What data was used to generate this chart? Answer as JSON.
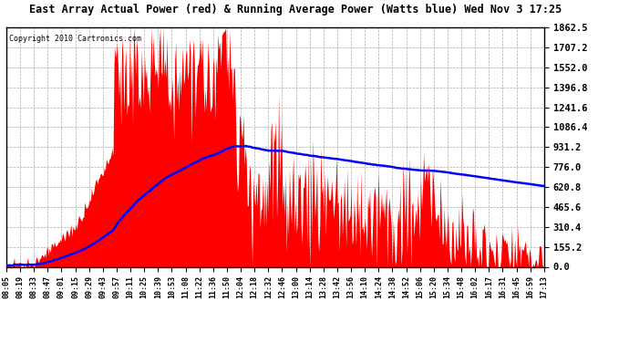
{
  "title": "East Array Actual Power (red) & Running Average Power (Watts blue) Wed Nov 3 17:25",
  "copyright": "Copyright 2010 Cartronics.com",
  "ylabel_right_ticks": [
    0.0,
    155.2,
    310.4,
    465.6,
    620.8,
    776.0,
    931.2,
    1086.4,
    1241.6,
    1396.8,
    1552.0,
    1707.2,
    1862.5
  ],
  "ymax": 1862.5,
  "ymin": 0.0,
  "fill_color": "red",
  "line_color": "blue",
  "background_color": "white",
  "grid_color": "#aaaaaa",
  "x_labels": [
    "08:05",
    "08:19",
    "08:33",
    "08:47",
    "09:01",
    "09:15",
    "09:29",
    "09:43",
    "09:57",
    "10:11",
    "10:25",
    "10:39",
    "10:53",
    "11:08",
    "11:22",
    "11:36",
    "11:50",
    "12:04",
    "12:18",
    "12:32",
    "12:46",
    "13:00",
    "13:14",
    "13:28",
    "13:42",
    "13:56",
    "14:10",
    "14:24",
    "14:38",
    "14:52",
    "15:06",
    "15:20",
    "15:34",
    "15:48",
    "16:02",
    "16:17",
    "16:31",
    "16:45",
    "16:59",
    "17:13"
  ],
  "n_points": 550
}
